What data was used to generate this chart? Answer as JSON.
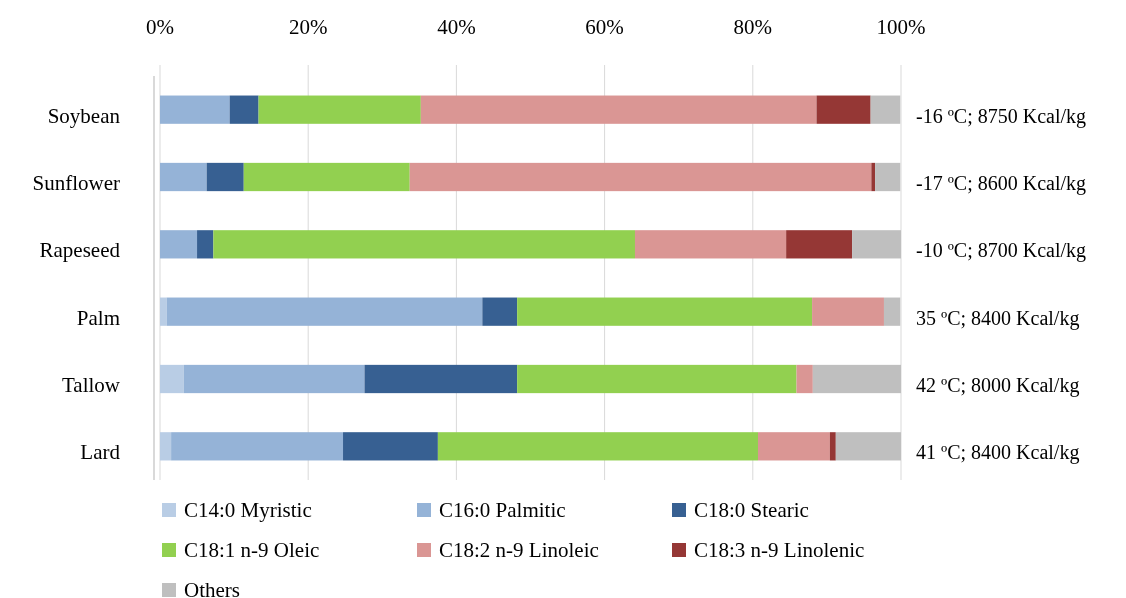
{
  "chart_data": {
    "type": "bar",
    "orientation": "horizontal",
    "stacked": true,
    "categories": [
      "Soybean",
      "Sunflower",
      "Rapeseed",
      "Palm",
      "Tallow",
      "Lard"
    ],
    "series": [
      {
        "name": "C14:0 Myristic",
        "color": "#b9cde5",
        "values": [
          null,
          null,
          null,
          0.9,
          3.2,
          1.5
        ]
      },
      {
        "name": "C16:0 Palmitic",
        "color": "#95b3d7",
        "values": [
          9.4,
          6.3,
          5.0,
          42.6,
          24.4,
          23.2
        ]
      },
      {
        "name": "C18:0 Stearic",
        "color": "#376092",
        "values": [
          3.9,
          5.0,
          2.2,
          4.7,
          20.6,
          12.8
        ]
      },
      {
        "name": "C18:1 n-9 Oleic",
        "color": "#92d050",
        "values": [
          21.9,
          22.4,
          56.9,
          39.8,
          37.7,
          43.2
        ]
      },
      {
        "name": "C18:2 n-9 Linoleic",
        "color": "#da9694",
        "values": [
          53.4,
          62.3,
          20.4,
          9.7,
          2.2,
          9.7
        ]
      },
      {
        "name": "C18:3 n-9 Linolenic",
        "color": "#953735",
        "values": [
          7.3,
          0.5,
          8.9,
          null,
          null,
          0.8
        ]
      },
      {
        "name": "Others",
        "color": "#bfbfbf",
        "values": [
          4.0,
          3.4,
          6.6,
          2.2,
          11.9,
          8.8
        ]
      }
    ],
    "xlim": [
      0,
      100
    ],
    "xticks": [
      {
        "value": 0,
        "label": "0%"
      },
      {
        "value": 20,
        "label": "20%"
      },
      {
        "value": 40,
        "label": "40%"
      },
      {
        "value": 60,
        "label": "60%"
      },
      {
        "value": 80,
        "label": "80%"
      },
      {
        "value": 100,
        "label": "100%"
      }
    ],
    "grid": "x",
    "legend": "bottom",
    "annotations": [
      "-16 ºC; 8750 Kcal/kg",
      "-17 ºC; 8600 Kcal/kg",
      "-10 ºC; 8700 Kcal/kg",
      "35 ºC; 8400 Kcal/kg",
      "42 ºC; 8000 Kcal/kg",
      "41 ºC; 8400 Kcal/kg"
    ]
  }
}
